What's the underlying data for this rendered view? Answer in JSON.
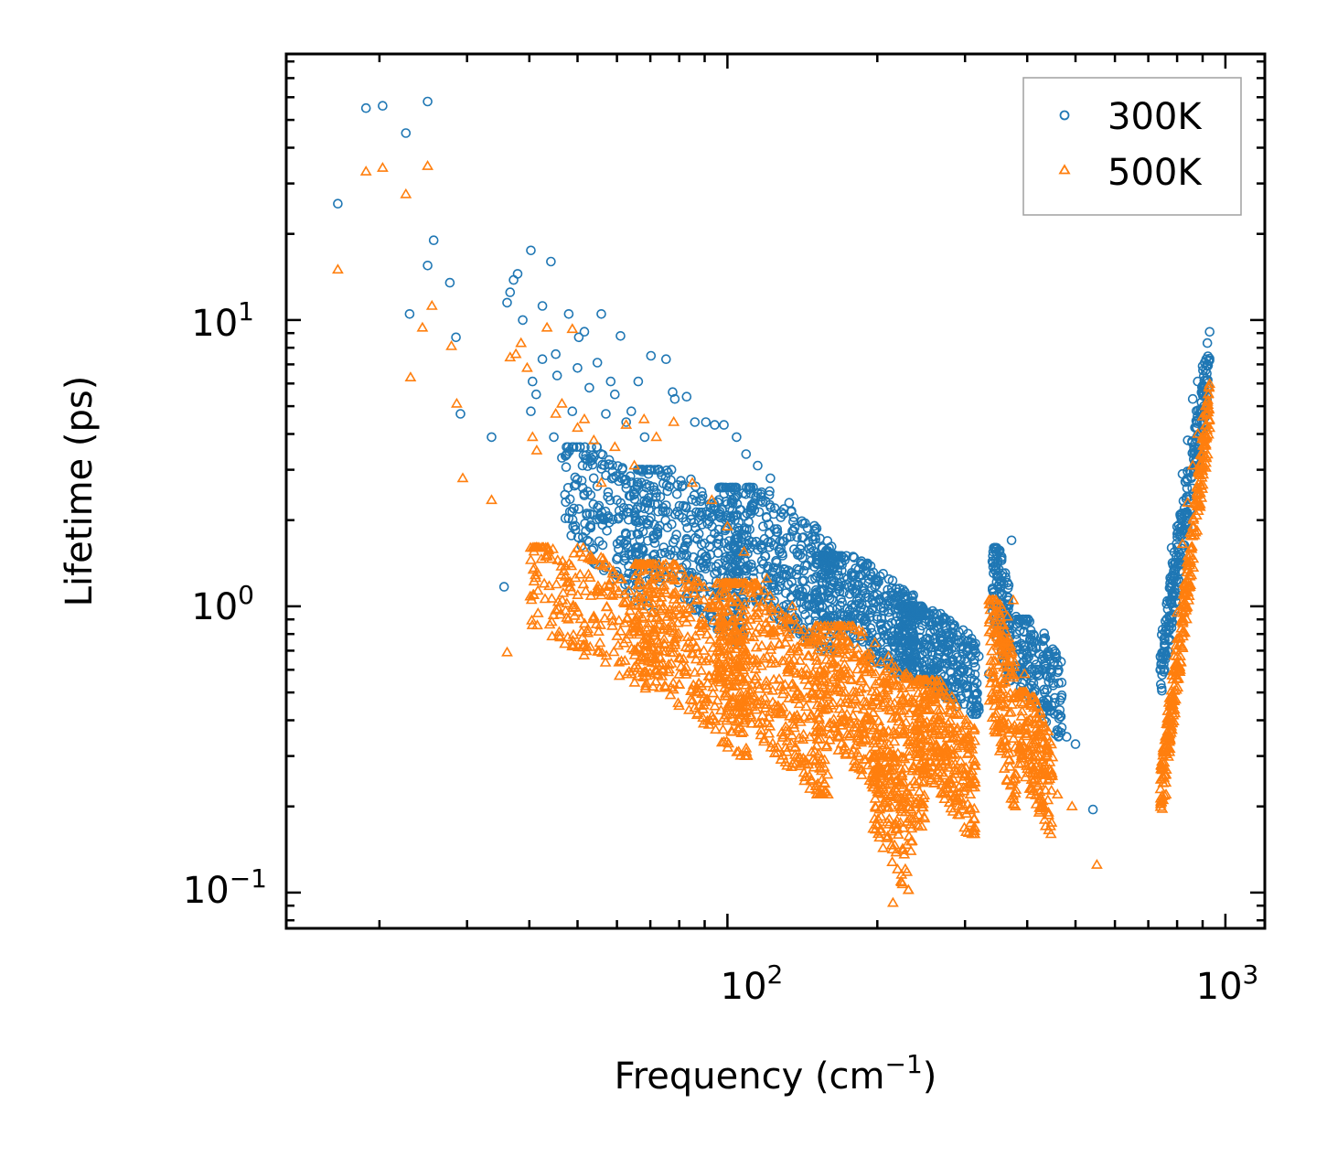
{
  "chart_data": {
    "type": "scatter",
    "title": "",
    "xlabel": "Frequency (cm",
    "xlabel_sup": "−1",
    "xlabel_end": ")",
    "ylabel": "Lifetime (ps)",
    "xscale": "log",
    "yscale": "log",
    "xlim": [
      13,
      1200
    ],
    "ylim": [
      0.075,
      85
    ],
    "x_ticks": [
      {
        "value": 100,
        "base": "10",
        "exp": "2"
      },
      {
        "value": 1000,
        "base": "10",
        "exp": "3"
      }
    ],
    "y_ticks": [
      {
        "value": 0.1,
        "base": "10",
        "exp": "−1"
      },
      {
        "value": 1,
        "base": "10",
        "exp": "0"
      },
      {
        "value": 10,
        "base": "10",
        "exp": "1"
      }
    ],
    "legend_position": "top-right",
    "series": [
      {
        "name": "300K",
        "marker": "circle",
        "color": "#1f77b4",
        "points": [
          [
            16.5,
            25.5
          ],
          [
            18.8,
            55
          ],
          [
            20.3,
            56
          ],
          [
            22.6,
            45
          ],
          [
            25,
            58
          ],
          [
            25,
            15.5
          ],
          [
            25.7,
            19
          ],
          [
            27.7,
            13.5
          ],
          [
            28.5,
            8.7
          ],
          [
            29.1,
            4.7
          ],
          [
            23,
            10.5
          ],
          [
            33.6,
            3.9
          ],
          [
            35.6,
            1.17
          ],
          [
            36.1,
            11.5
          ],
          [
            36.6,
            12.5
          ],
          [
            37.2,
            13.8
          ],
          [
            37.9,
            14.5
          ],
          [
            38.8,
            10
          ],
          [
            40.3,
            17.5
          ],
          [
            40.6,
            6.1
          ],
          [
            40.3,
            4.8
          ],
          [
            41.3,
            5.5
          ],
          [
            42.5,
            7.3
          ],
          [
            42.5,
            11.2
          ],
          [
            44.2,
            16
          ],
          [
            44.8,
            3.9
          ],
          [
            45.2,
            7.6
          ],
          [
            45.5,
            6.4
          ],
          [
            46.5,
            3.3
          ],
          [
            48.8,
            4.8
          ],
          [
            48,
            10.5
          ],
          [
            50,
            6.8
          ],
          [
            50.3,
            8.7
          ],
          [
            51.6,
            9.1
          ],
          [
            52.8,
            5.8
          ],
          [
            54.8,
            7.1
          ],
          [
            55.8,
            10.5
          ],
          [
            57,
            4.7
          ],
          [
            58.3,
            6.1
          ],
          [
            59.4,
            5.5
          ],
          [
            61,
            8.8
          ],
          [
            62.6,
            4.4
          ],
          [
            64.1,
            4.8
          ],
          [
            66.2,
            6.1
          ],
          [
            68.2,
            3.9
          ],
          [
            70.2,
            7.5
          ],
          [
            75.3,
            7.3
          ],
          [
            77.6,
            5.6
          ],
          [
            78.4,
            5.3
          ],
          [
            82.8,
            5.4
          ],
          [
            86,
            4.4
          ],
          [
            90.5,
            4.4
          ],
          [
            94.3,
            4.3
          ],
          [
            98.4,
            4.3
          ],
          [
            104.3,
            3.9
          ],
          [
            109,
            3.4
          ],
          [
            115,
            3.1
          ],
          [
            122,
            2.8
          ],
          [
            133,
            2.3
          ],
          [
            148,
            1.75
          ],
          [
            160,
            1.6
          ],
          [
            172,
            1.45
          ],
          [
            186,
            1.28
          ],
          [
            200,
            0.92
          ],
          [
            210,
            0.86
          ],
          [
            220,
            0.81
          ],
          [
            242,
            0.9
          ],
          [
            262,
            0.88
          ],
          [
            290,
            0.62
          ],
          [
            312,
            0.47
          ],
          [
            335,
            0.58
          ],
          [
            348,
            1.28
          ],
          [
            358,
            0.75
          ],
          [
            372,
            1.7
          ],
          [
            380,
            0.92
          ],
          [
            400,
            0.68
          ],
          [
            423,
            0.6
          ],
          [
            445,
            0.43
          ],
          [
            480,
            0.35
          ],
          [
            500,
            0.33
          ],
          [
            542,
            0.195
          ],
          [
            760,
            0.85
          ],
          [
            780,
            1.6
          ],
          [
            800,
            1.9
          ],
          [
            820,
            2.9
          ],
          [
            840,
            3.8
          ],
          [
            860,
            5.3
          ],
          [
            880,
            6.1
          ],
          [
            900,
            6.9
          ],
          [
            915,
            7.3
          ]
        ],
        "clusters": [
          {
            "x": [
              47,
              72
            ],
            "y": [
              0.95,
              3.6
            ],
            "n": 220
          },
          {
            "x": [
              65,
              110
            ],
            "y": [
              0.75,
              3.0
            ],
            "n": 320
          },
          {
            "x": [
              95,
              165
            ],
            "y": [
              0.7,
              2.6
            ],
            "n": 420
          },
          {
            "x": [
              150,
              240
            ],
            "y": [
              0.55,
              1.5
            ],
            "n": 400
          },
          {
            "x": [
              220,
              320
            ],
            "y": [
              0.42,
              1.0
            ],
            "n": 360
          },
          {
            "x": [
              340,
              370
            ],
            "y": [
              0.55,
              1.6
            ],
            "n": 140
          },
          {
            "x": [
              380,
              470
            ],
            "y": [
              0.35,
              0.9
            ],
            "n": 180
          },
          {
            "x": [
              740,
              930
            ],
            "y": [
              0.6,
              7.3
            ],
            "n": 260,
            "trend": "rising"
          }
        ]
      },
      {
        "name": "500K",
        "marker": "triangle",
        "color": "#ff7f0e",
        "points": [
          [
            16.5,
            15
          ],
          [
            18.8,
            33
          ],
          [
            20.3,
            34
          ],
          [
            22.6,
            27.5
          ],
          [
            25,
            34.5
          ],
          [
            24.4,
            9.4
          ],
          [
            25.5,
            11.2
          ],
          [
            27.9,
            8.1
          ],
          [
            28.6,
            5.1
          ],
          [
            29.4,
            2.8
          ],
          [
            23.1,
            6.3
          ],
          [
            33.6,
            2.35
          ],
          [
            36.1,
            0.69
          ],
          [
            36.6,
            7.4
          ],
          [
            37.6,
            7.6
          ],
          [
            38.5,
            8.3
          ],
          [
            39.6,
            6.8
          ],
          [
            40.6,
            3.9
          ],
          [
            41.4,
            3.5
          ],
          [
            43.4,
            9.4
          ],
          [
            45.2,
            4.7
          ],
          [
            46.5,
            5.1
          ],
          [
            48.8,
            9.3
          ],
          [
            50,
            4.2
          ],
          [
            51.6,
            4.5
          ],
          [
            53.9,
            3.8
          ],
          [
            55.8,
            2.7
          ],
          [
            59.4,
            3.6
          ],
          [
            62.6,
            4.3
          ],
          [
            65,
            3.1
          ],
          [
            68,
            4.5
          ],
          [
            72,
            3.9
          ],
          [
            78,
            4.4
          ],
          [
            85,
            2.7
          ],
          [
            93,
            2.35
          ],
          [
            100,
            1.9
          ],
          [
            108,
            1.55
          ],
          [
            120,
            1.25
          ],
          [
            135,
            1.0
          ],
          [
            150,
            0.78
          ],
          [
            172,
            0.6
          ],
          [
            190,
            0.52
          ],
          [
            205,
            0.45
          ],
          [
            215,
            0.092
          ],
          [
            235,
            0.38
          ],
          [
            260,
            0.3
          ],
          [
            290,
            0.21
          ],
          [
            313,
            0.18
          ],
          [
            355,
            0.38
          ],
          [
            365,
            0.92
          ],
          [
            375,
            1.05
          ],
          [
            395,
            0.58
          ],
          [
            420,
            0.35
          ],
          [
            440,
            0.21
          ],
          [
            460,
            0.22
          ],
          [
            492,
            0.2
          ],
          [
            552,
            0.125
          ],
          [
            760,
            0.22
          ],
          [
            780,
            0.45
          ],
          [
            800,
            0.95
          ],
          [
            820,
            1.65
          ],
          [
            840,
            2.3
          ],
          [
            860,
            3.1
          ],
          [
            880,
            4.0
          ],
          [
            900,
            4.6
          ],
          [
            912,
            5.0
          ]
        ],
        "clusters": [
          {
            "x": [
              40,
              75
            ],
            "y": [
              0.5,
              1.6
            ],
            "n": 260
          },
          {
            "x": [
              65,
              110
            ],
            "y": [
              0.3,
              1.4
            ],
            "n": 380
          },
          {
            "x": [
              95,
              160
            ],
            "y": [
              0.22,
              1.2
            ],
            "n": 460
          },
          {
            "x": [
              150,
              250
            ],
            "y": [
              0.17,
              0.85
            ],
            "n": 480
          },
          {
            "x": [
              195,
              235
            ],
            "y": [
              0.1,
              0.3
            ],
            "n": 120
          },
          {
            "x": [
              240,
              315
            ],
            "y": [
              0.16,
              0.55
            ],
            "n": 300
          },
          {
            "x": [
              335,
              380
            ],
            "y": [
              0.2,
              1.05
            ],
            "n": 180
          },
          {
            "x": [
              385,
              450
            ],
            "y": [
              0.16,
              0.5
            ],
            "n": 180
          },
          {
            "x": [
              740,
              930
            ],
            "y": [
              0.21,
              5.0
            ],
            "n": 300,
            "trend": "rising"
          }
        ]
      }
    ]
  }
}
